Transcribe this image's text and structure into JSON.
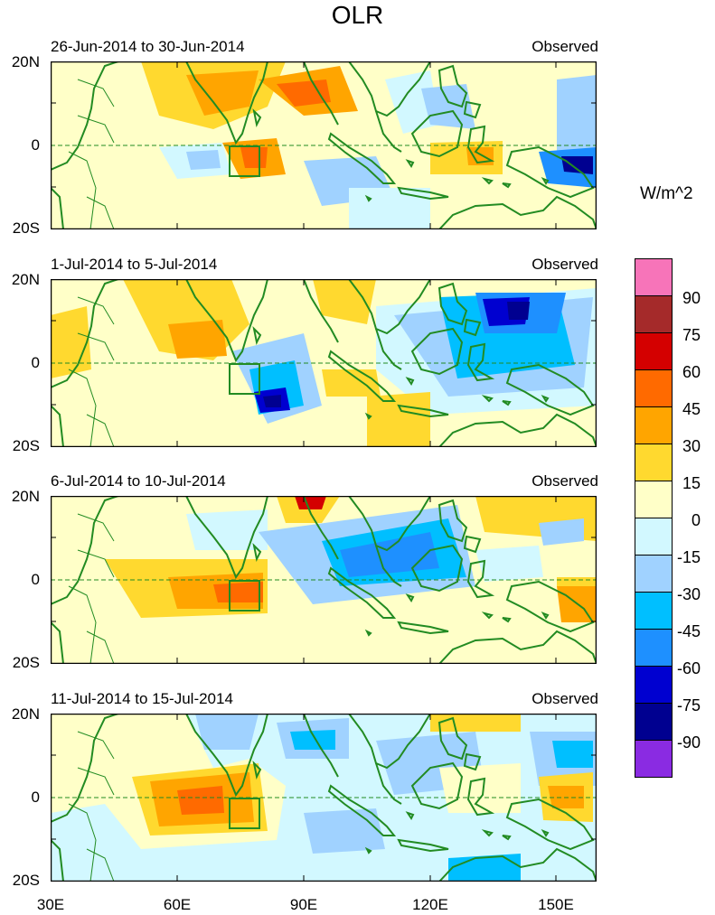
{
  "title": "OLR",
  "units": "W/m^2",
  "panels": [
    {
      "date_range": "26-Jun-2014 to 30-Jun-2014",
      "tag": "Observed"
    },
    {
      "date_range": "1-Jul-2014 to 5-Jul-2014",
      "tag": "Observed"
    },
    {
      "date_range": "6-Jul-2014 to 10-Jul-2014",
      "tag": "Observed"
    },
    {
      "date_range": "11-Jul-2014 to 15-Jul-2014",
      "tag": "Observed"
    }
  ],
  "lat_labels": [
    "20N",
    "0",
    "20S"
  ],
  "lon_labels": [
    "30E",
    "60E",
    "90E",
    "120E",
    "150E"
  ],
  "colorbar": {
    "labels": [
      "90",
      "75",
      "60",
      "45",
      "30",
      "15",
      "0",
      "-15",
      "-30",
      "-45",
      "-60",
      "-75",
      "-90"
    ],
    "colors": [
      "#f774b9",
      "#a52a2a",
      "#d40000",
      "#ff6a00",
      "#ffa500",
      "#ffd92f",
      "#ffffc8",
      "#d2f8ff",
      "#a0d2ff",
      "#00bfff",
      "#1e90ff",
      "#0000d0",
      "#000090",
      "#8a2be2"
    ]
  },
  "colors": {
    "coast": "#228b22",
    "box": "#228b22",
    "equator": "#228b22"
  }
}
